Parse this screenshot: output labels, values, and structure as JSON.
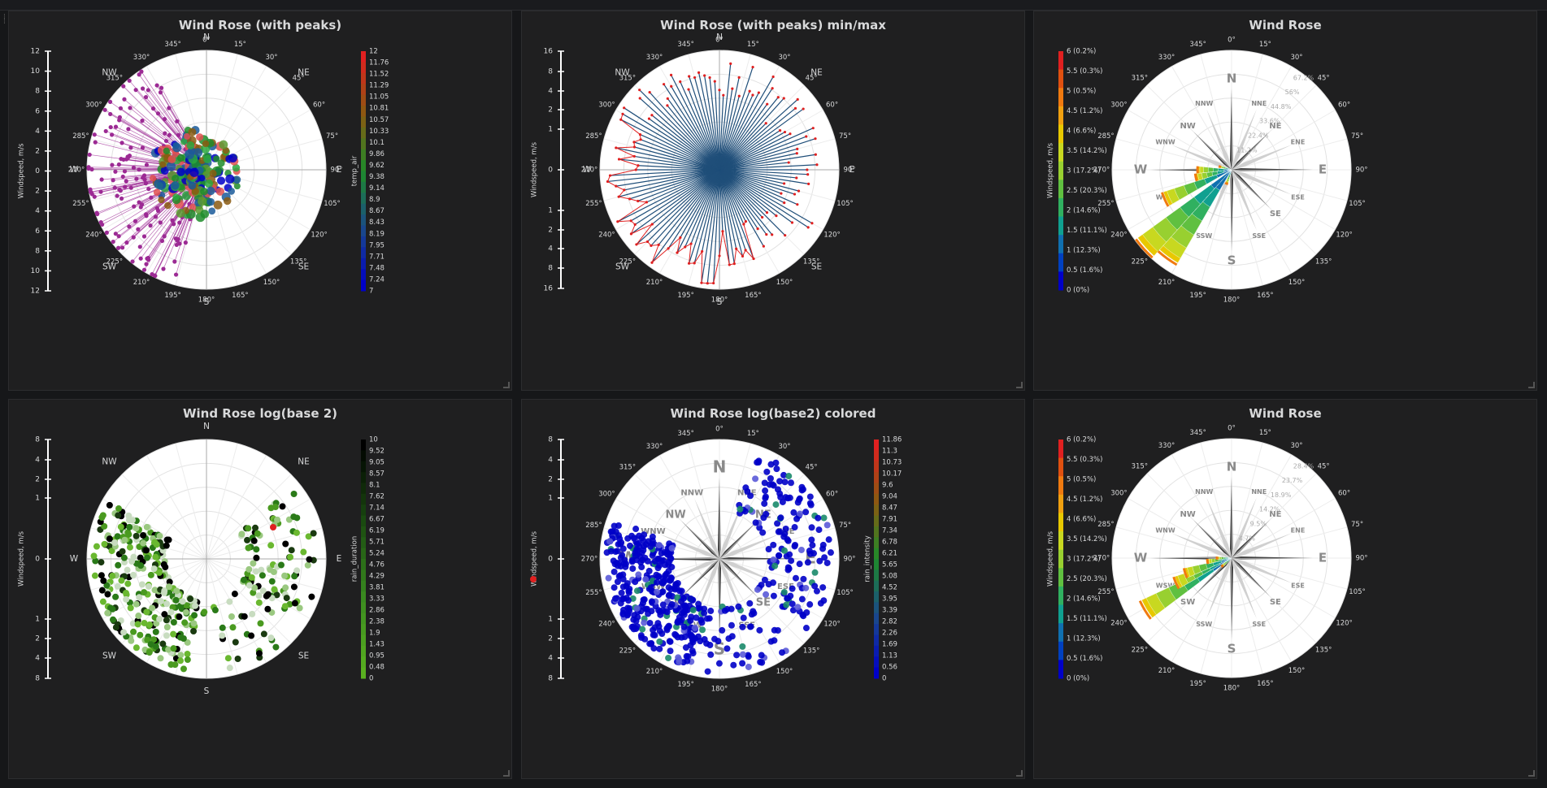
{
  "dashboard": {
    "panels": [
      {
        "title": "Wind Rose (with peaks)"
      },
      {
        "title": "Wind Rose (with peaks) min/max"
      },
      {
        "title": "Wind Rose"
      },
      {
        "title": "Wind Rose log(base 2)"
      },
      {
        "title": "Wind Rose log(base2) colored"
      },
      {
        "title": "Wind Rose"
      }
    ]
  },
  "labels": {
    "y_axis_title": "Windspeed, m/s",
    "compass": {
      "N": "N",
      "NE": "NE",
      "E": "E",
      "SE": "SE",
      "S": "S",
      "SW": "SW",
      "W": "W",
      "NW": "NW"
    },
    "minor_compass": {
      "NNE": "NNE",
      "ENE": "ENE",
      "ESE": "ESE",
      "SSE": "SSE",
      "SSW": "SSW",
      "WSW": "WSW",
      "WNW": "WNW",
      "NNW": "NNW"
    },
    "degree_ticks": [
      "0°",
      "15°",
      "30°",
      "45°",
      "60°",
      "75°",
      "90°",
      "105°",
      "120°",
      "135°",
      "150°",
      "165°",
      "180°",
      "195°",
      "210°",
      "225°",
      "240°",
      "255°",
      "270°",
      "285°",
      "300°",
      "315°",
      "330°",
      "345°"
    ]
  },
  "colors": {
    "background": "#1f1f20",
    "title": "#d8d9da",
    "polar_bg": "#ffffff",
    "series_purple": "#9c2a94",
    "series_navy": "#1f4e79",
    "peak_red": "#e02020"
  },
  "chart_data": [
    {
      "type": "scatter",
      "title": "Wind Rose (with peaks)",
      "ylabel": "Windspeed, m/s",
      "yaxis_ticks": [
        "12",
        "10",
        "8",
        "6",
        "4",
        "2",
        "0",
        "2",
        "4",
        "6",
        "8",
        "10",
        "12"
      ],
      "colorbar": {
        "label": "temp_air",
        "ticks": [
          "12",
          "11.76",
          "11.52",
          "11.29",
          "11.05",
          "10.81",
          "10.57",
          "10.33",
          "10.1",
          "9.86",
          "9.62",
          "9.38",
          "9.14",
          "8.9",
          "8.67",
          "8.43",
          "8.19",
          "7.95",
          "7.71",
          "7.48",
          "7.24",
          "7"
        ]
      },
      "peaks_series": {
        "color": "#9c2a94",
        "direction_range_deg": [
          190,
          330
        ],
        "max_speed": 12
      },
      "grid": true
    },
    {
      "type": "line",
      "title": "Wind Rose (with peaks) min/max",
      "ylabel": "Windspeed, m/s",
      "yaxis_ticks": [
        "16",
        "8",
        "4",
        "2",
        "1",
        "0",
        "1",
        "2",
        "4",
        "8",
        "16"
      ],
      "series": [
        {
          "values_description": "radial min/max lines per direction"
        }
      ],
      "grid": true
    },
    {
      "type": "bar",
      "title": "Wind Rose",
      "ylabel": "Windspeed, m/s",
      "colorbar_ticks": [
        "6 (0.2%)",
        "5.5 (0.3%)",
        "5 (0.5%)",
        "4.5 (1.2%)",
        "4 (6.6%)",
        "3.5 (14.2%)",
        "3 (17.2%)",
        "2.5 (20.3%)",
        "2 (14.6%)",
        "1.5 (11.1%)",
        "1 (12.3%)",
        "0.5 (1.6%)",
        "0 (0%)"
      ],
      "radial_ticks": [
        "11.2%",
        "22.4%",
        "33.6%",
        "44.8%",
        "56%",
        "67.2%"
      ],
      "dominant_direction_deg": 225,
      "grid": true
    },
    {
      "type": "scatter",
      "title": "Wind Rose log(base 2)",
      "ylabel": "Windspeed, m/s",
      "yaxis_ticks": [
        "8",
        "4",
        "2",
        "1",
        "0",
        "1",
        "2",
        "4",
        "8"
      ],
      "colorbar": {
        "label": "rain_duration",
        "ticks": [
          "10",
          "9.52",
          "9.05",
          "8.57",
          "8.1",
          "7.62",
          "7.14",
          "6.67",
          "6.19",
          "5.71",
          "5.24",
          "4.76",
          "4.29",
          "3.81",
          "3.33",
          "2.86",
          "2.38",
          "1.9",
          "1.43",
          "0.95",
          "0.48",
          "0"
        ]
      },
      "grid": true
    },
    {
      "type": "scatter",
      "title": "Wind Rose log(base2) colored",
      "ylabel": "Windspeed, m/s",
      "yaxis_ticks": [
        "8",
        "4",
        "2",
        "1",
        "0",
        "1",
        "2",
        "4",
        "8"
      ],
      "colorbar": {
        "label": "rain_intensity",
        "ticks": [
          "11.86",
          "11.3",
          "10.73",
          "10.17",
          "9.6",
          "9.04",
          "8.47",
          "7.91",
          "7.34",
          "6.78",
          "6.21",
          "5.65",
          "5.08",
          "4.52",
          "3.95",
          "3.39",
          "2.82",
          "2.26",
          "1.69",
          "1.13",
          "0.56",
          "0"
        ]
      },
      "grid": true
    },
    {
      "type": "bar",
      "title": "Wind Rose",
      "ylabel": "Windspeed, m/s",
      "colorbar_ticks": [
        "6 (0.2%)",
        "5.5 (0.3%)",
        "5 (0.5%)",
        "4.5 (1.2%)",
        "4 (6.6%)",
        "3.5 (14.2%)",
        "3 (17.2%)",
        "2.5 (20.3%)",
        "2 (14.6%)",
        "1.5 (11.1%)",
        "1 (12.3%)",
        "0.5 (1.6%)",
        "0 (0%)"
      ],
      "radial_ticks": [
        "4.7%",
        "9.5%",
        "14.2%",
        "18.9%",
        "23.7%",
        "28.4%"
      ],
      "dominant_direction_deg": 235,
      "grid": true
    }
  ]
}
